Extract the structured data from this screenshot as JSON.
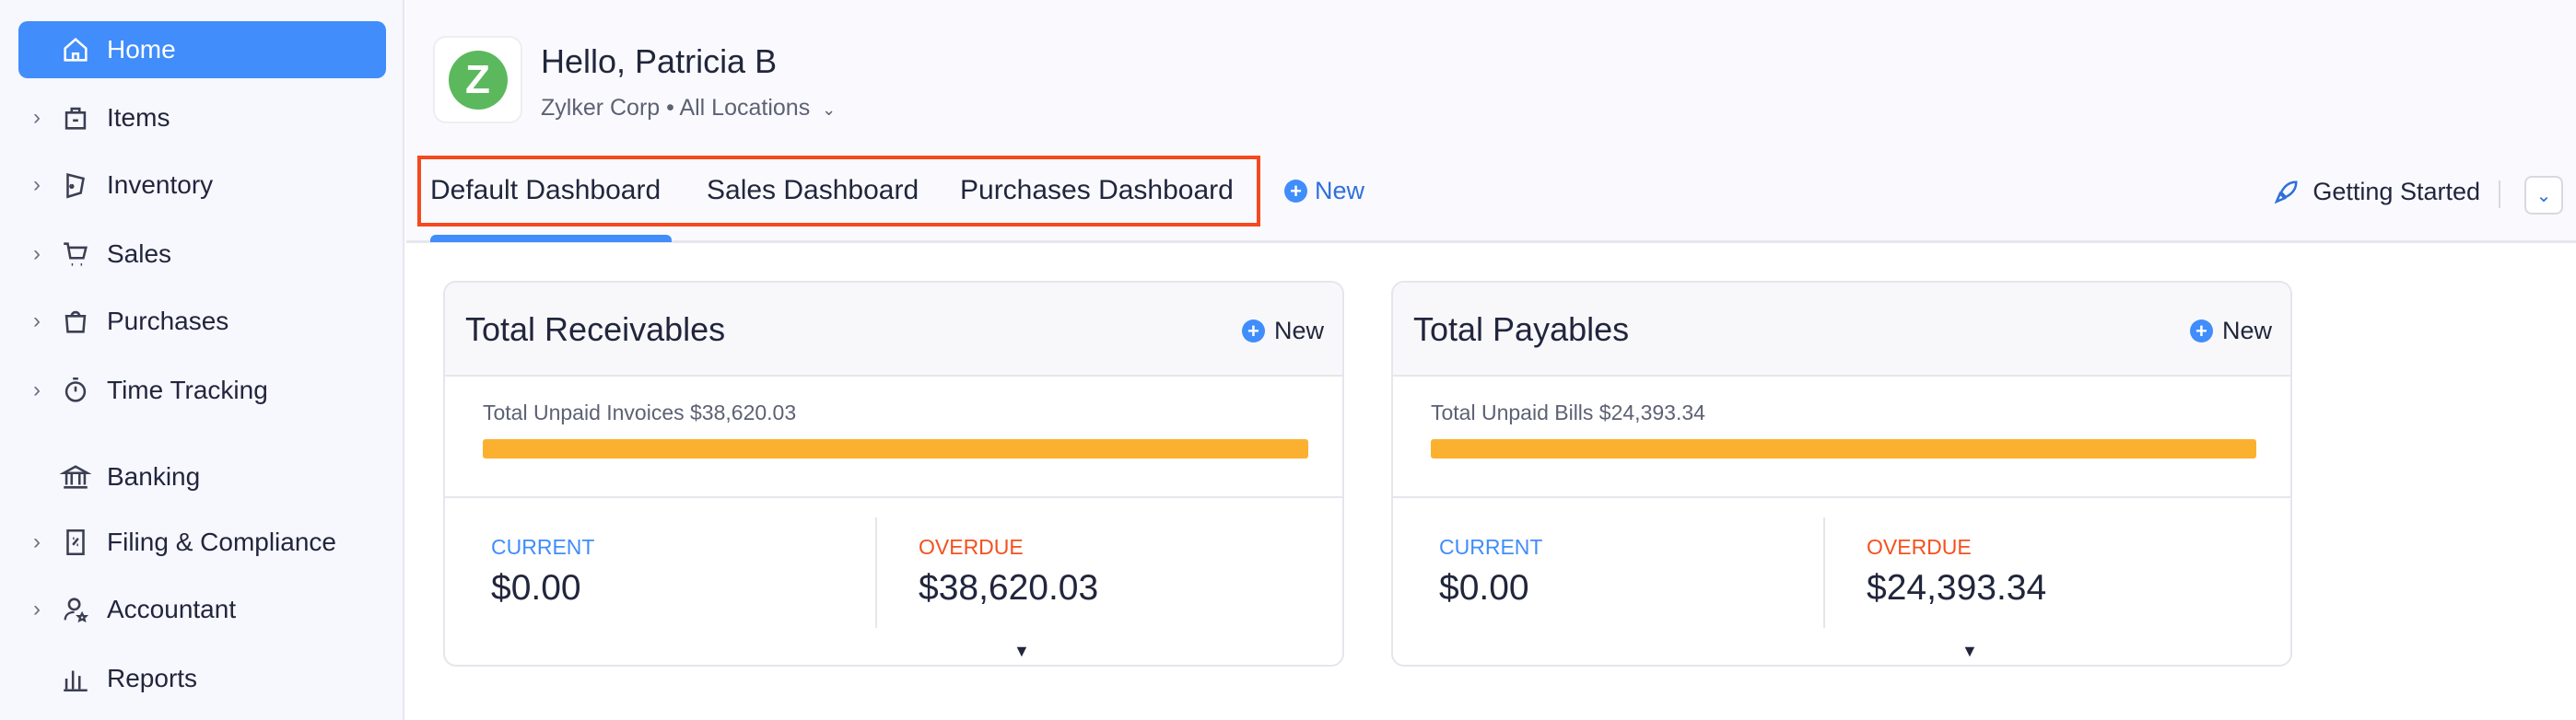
{
  "sidebar": {
    "items": [
      {
        "label": "Home",
        "icon": "home-icon",
        "active": true,
        "expandable": false
      },
      {
        "label": "Items",
        "icon": "items-bag-icon",
        "expandable": true
      },
      {
        "label": "Inventory",
        "icon": "inventory-icon",
        "expandable": true
      },
      {
        "label": "Sales",
        "icon": "cart-icon",
        "expandable": true
      },
      {
        "label": "Purchases",
        "icon": "bag-icon",
        "expandable": true
      },
      {
        "label": "Time Tracking",
        "icon": "stopwatch-icon",
        "expandable": true
      },
      {
        "label": "Banking",
        "icon": "bank-icon",
        "expandable": false
      },
      {
        "label": "Filing & Compliance",
        "icon": "filing-icon",
        "expandable": true
      },
      {
        "label": "Accountant",
        "icon": "accountant-icon",
        "expandable": true
      },
      {
        "label": "Reports",
        "icon": "reports-icon",
        "expandable": false
      }
    ]
  },
  "header": {
    "logo_letter": "Z",
    "greeting": "Hello, Patricia B",
    "org": "Zylker Corp",
    "location": "All Locations",
    "tabs": [
      {
        "label": "Default Dashboard",
        "active": true
      },
      {
        "label": "Sales Dashboard"
      },
      {
        "label": "Purchases Dashboard"
      }
    ],
    "new_label": "New",
    "getting_started": "Getting Started"
  },
  "cards": [
    {
      "title": "Total Receivables",
      "new_label": "New",
      "unpaid": "Total Unpaid Invoices $38,620.03",
      "current_label": "CURRENT",
      "current_value": "$0.00",
      "overdue_label": "OVERDUE",
      "overdue_value": "$38,620.03",
      "overdue_fraction": 1.0
    },
    {
      "title": "Total Payables",
      "new_label": "New",
      "unpaid": "Total Unpaid Bills $24,393.34",
      "current_label": "CURRENT",
      "current_value": "$0.00",
      "overdue_label": "OVERDUE",
      "overdue_value": "$24,393.34",
      "overdue_fraction": 1.0
    }
  ],
  "colors": {
    "accent": "#408dfb",
    "current": "#408dfb",
    "overdue": "#f4511e",
    "bar": "#fbb12f",
    "highlight": "#f4491f"
  }
}
